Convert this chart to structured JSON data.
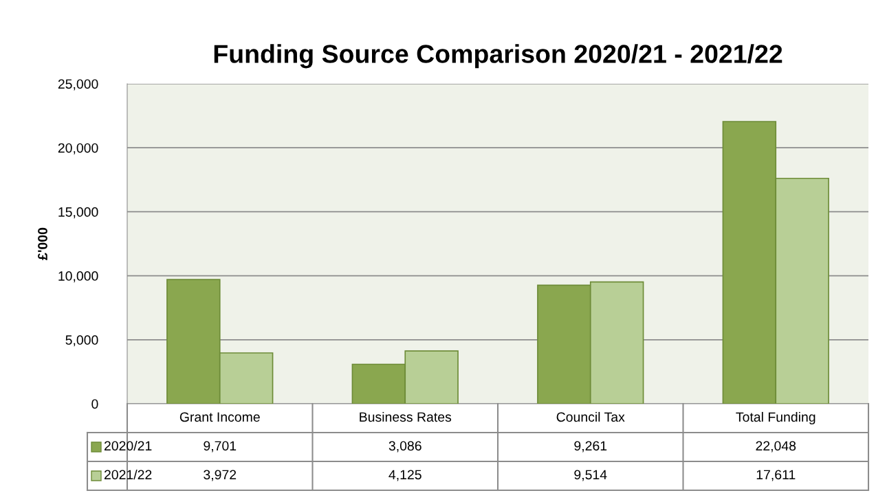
{
  "chart_data": {
    "type": "bar",
    "title": "Funding Source Comparison 2020/21 - 2021/22",
    "ylabel": "£'000",
    "categories": [
      "Grant Income",
      "Business Rates",
      "Council Tax",
      "Total Funding"
    ],
    "series": [
      {
        "name": "2020/21",
        "color": "#8aa74f",
        "values": [
          9701,
          3086,
          9261,
          22048
        ],
        "value_labels": [
          "9,701",
          "3,086",
          "9,261",
          "22,048"
        ]
      },
      {
        "name": "2021/22",
        "color": "#b8cf96",
        "values": [
          3972,
          4125,
          9514,
          17611
        ],
        "value_labels": [
          "3,972",
          "4,125",
          "9,514",
          "17,611"
        ]
      }
    ],
    "ylim": [
      0,
      25000
    ],
    "yticks": [
      {
        "value": 0,
        "label": "0"
      },
      {
        "value": 5000,
        "label": "5,000"
      },
      {
        "value": 10000,
        "label": "10,000"
      },
      {
        "value": 15000,
        "label": "15,000"
      },
      {
        "value": 20000,
        "label": "20,000"
      },
      {
        "value": 25000,
        "label": "25,000"
      }
    ],
    "grid": "y",
    "legend": "bottom"
  }
}
